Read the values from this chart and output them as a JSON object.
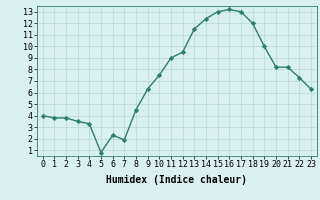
{
  "x": [
    0,
    1,
    2,
    3,
    4,
    5,
    6,
    7,
    8,
    9,
    10,
    11,
    12,
    13,
    14,
    15,
    16,
    17,
    18,
    19,
    20,
    21,
    22,
    23
  ],
  "y": [
    4.0,
    3.8,
    3.8,
    3.5,
    3.3,
    0.8,
    2.3,
    1.9,
    4.5,
    6.3,
    7.5,
    9.0,
    9.5,
    11.5,
    12.4,
    13.0,
    13.2,
    13.0,
    12.0,
    10.0,
    8.2,
    8.2,
    7.3,
    6.3
  ],
  "line_color": "#2e7d6e",
  "bg_color": "#d8f0f0",
  "grid_color": "#b8d8d8",
  "xlabel": "Humidex (Indice chaleur)",
  "xlim": [
    -0.5,
    23.5
  ],
  "ylim": [
    0.5,
    13.5
  ],
  "xticks": [
    0,
    1,
    2,
    3,
    4,
    5,
    6,
    7,
    8,
    9,
    10,
    11,
    12,
    13,
    14,
    15,
    16,
    17,
    18,
    19,
    20,
    21,
    22,
    23
  ],
  "yticks": [
    1,
    2,
    3,
    4,
    5,
    6,
    7,
    8,
    9,
    10,
    11,
    12,
    13
  ],
  "marker": "D",
  "markersize": 2.2,
  "linewidth": 1.0,
  "xlabel_fontsize": 7,
  "tick_fontsize": 6,
  "axis_bg": "#d8f0f0",
  "fig_bg": "#d8f0f0"
}
